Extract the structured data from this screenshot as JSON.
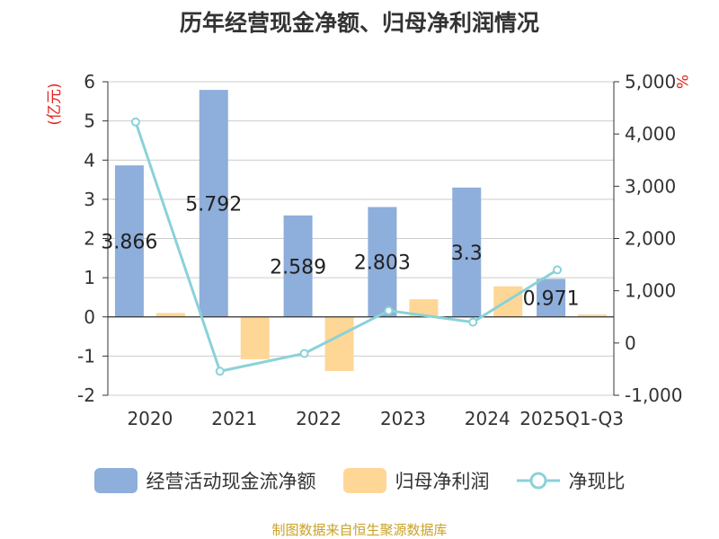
{
  "chart_data": {
    "type": "bar",
    "title": "历年经营现金净额、归母净利润情况",
    "categories": [
      "2020",
      "2021",
      "2022",
      "2023",
      "2024",
      "2025Q1-Q3"
    ],
    "series": [
      {
        "name": "经营活动现金流净额",
        "kind": "bar",
        "axis": "left",
        "color": "#8eaedb",
        "values": [
          3.866,
          5.792,
          2.589,
          2.803,
          3.3,
          0.971
        ]
      },
      {
        "name": "归母净利润",
        "kind": "bar",
        "axis": "left",
        "color": "#fed796",
        "values": [
          0.1,
          -1.08,
          -1.38,
          0.45,
          0.78,
          0.06
        ]
      },
      {
        "name": "净现比",
        "kind": "line",
        "axis": "right",
        "color": "#8ad2d8",
        "values": [
          4230,
          -540,
          -200,
          620,
          400,
          1400
        ]
      }
    ],
    "y_left": {
      "unit": "(亿元)",
      "ylim": [
        -2,
        6
      ],
      "ticks": [
        "6",
        "5",
        "4",
        "3",
        "2",
        "1",
        "0",
        "-1",
        "-2"
      ]
    },
    "y_right": {
      "unit": "%",
      "ylim": [
        -1000,
        5000
      ],
      "ticks": [
        "5,000",
        "4,000",
        "3,000",
        "2,000",
        "1,000",
        "0",
        "-1,000"
      ]
    },
    "data_labels": [
      "3.866",
      "5.792",
      "2.589",
      "2.803",
      "3.3",
      "0.971"
    ],
    "legend_position": "bottom",
    "grid": true
  },
  "source": "制图数据来自恒生聚源数据库"
}
